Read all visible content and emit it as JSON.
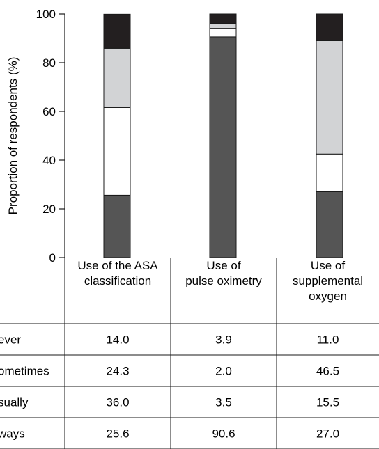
{
  "chart_data": {
    "type": "bar",
    "stacked": true,
    "ylabel": "Proportion of respondents (%)",
    "ylim": [
      0,
      100
    ],
    "yticks": [
      "0",
      "20",
      "40",
      "60",
      "80",
      "100"
    ],
    "categories": [
      [
        "Use of the ASA",
        "classification"
      ],
      [
        "Use of",
        "pulse oximetry"
      ],
      [
        "Use of",
        "supplemental",
        "oxygen"
      ]
    ],
    "series": [
      {
        "name": "Always",
        "color": "#555555",
        "values": [
          25.6,
          90.6,
          27.0
        ],
        "labels": [
          "25.6",
          "90.6",
          "27.0"
        ]
      },
      {
        "name": "Usually",
        "color": "#ffffff",
        "values": [
          36.0,
          3.5,
          15.5
        ],
        "labels": [
          "36.0",
          "3.5",
          "15.5"
        ]
      },
      {
        "name": "Sometimes",
        "color": "#d2d3d5",
        "values": [
          24.3,
          2.0,
          46.5
        ],
        "labels": [
          "24.3",
          "2.0",
          "46.5"
        ]
      },
      {
        "name": "Never",
        "color": "#231f20",
        "values": [
          14.0,
          3.9,
          11.0
        ],
        "labels": [
          "14.0",
          "3.9",
          "11.0"
        ]
      }
    ],
    "table_rows": [
      {
        "label": "ever",
        "series": 3
      },
      {
        "label": "ometimes",
        "series": 2
      },
      {
        "label": "sually",
        "series": 1
      },
      {
        "label": "ways",
        "series": 0
      }
    ]
  }
}
